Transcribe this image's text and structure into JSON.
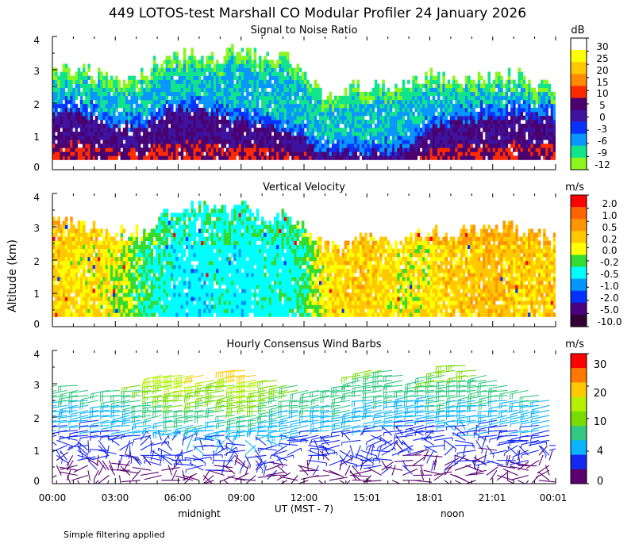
{
  "figure": {
    "title": "449 LOTOS-test Marshall CO Modular Profiler 24 January 2026",
    "ylabel": "Altitude (km)",
    "xlabel": "UT  (MST - 7)",
    "x_ticks": [
      "00:00",
      "03:00",
      "06:00",
      "09:00",
      "12:00",
      "15:01",
      "18:01",
      "21:01",
      "00:01"
    ],
    "local_markers": [
      "midnight",
      "noon"
    ],
    "footnote": "Simple filtering applied"
  },
  "chart_data": [
    {
      "type": "heatmap",
      "title": "Signal to Noise Ratio",
      "x": {
        "unit": "hours UT",
        "range": [
          0,
          24
        ]
      },
      "y": {
        "unit": "km",
        "range": [
          0,
          4
        ],
        "ticks": [
          "0",
          "1",
          "2",
          "3",
          "4"
        ]
      },
      "colorbar": {
        "unit": "dB",
        "labels": [
          "30",
          "25",
          "20",
          "15",
          "10",
          "5",
          "0",
          "-3",
          "-6",
          "-9",
          "-12"
        ],
        "colors": [
          "#ffffff",
          "#ffff00",
          "#ffc800",
          "#ff8c00",
          "#ff2a00",
          "#4b006e",
          "#3c14a0",
          "#0a32ff",
          "#0a96ff",
          "#12e48c",
          "#8cf51e"
        ]
      },
      "top_height_by_hour": [
        2.9,
        3.0,
        2.8,
        2.7,
        2.6,
        3.2,
        3.3,
        3.4,
        3.3,
        3.5,
        3.3,
        3.4,
        2.9,
        2.2,
        2.4,
        2.5,
        2.4,
        2.6,
        2.8,
        2.6,
        2.7,
        2.6,
        2.8,
        2.5,
        2.4
      ],
      "core_height_by_hour": [
        1.7,
        1.7,
        1.5,
        1.3,
        1.2,
        1.5,
        1.8,
        1.7,
        1.6,
        1.4,
        1.3,
        1.2,
        0.9,
        0.4,
        0.5,
        0.5,
        0.5,
        0.6,
        1.2,
        1.4,
        1.5,
        1.5,
        1.6,
        1.5,
        1.5
      ]
    },
    {
      "type": "heatmap",
      "title": "Vertical Velocity",
      "x": {
        "unit": "hours UT",
        "range": [
          0,
          24
        ]
      },
      "y": {
        "unit": "km",
        "range": [
          0,
          4
        ],
        "ticks": [
          "0",
          "1",
          "2",
          "3",
          "4"
        ]
      },
      "colorbar": {
        "unit": "m/s",
        "labels": [
          "2.0",
          "1.0",
          "0.5",
          "0.2",
          "0.0",
          "-0.2",
          "-0.5",
          "-1.0",
          "-2.0",
          "-5.0",
          "-10.0"
        ],
        "colors": [
          "#ff0000",
          "#ff6400",
          "#ff9600",
          "#ffc800",
          "#ffff00",
          "#32dc32",
          "#00ffff",
          "#0096ff",
          "#0032ff",
          "#4b0082",
          "#320032"
        ]
      },
      "top_height_by_hour": [
        3.1,
        3.0,
        2.9,
        2.8,
        2.7,
        3.2,
        3.4,
        3.6,
        3.4,
        3.5,
        3.2,
        3.3,
        2.9,
        2.3,
        2.4,
        2.7,
        2.4,
        2.7,
        2.9,
        2.6,
        2.8,
        2.9,
        3.0,
        2.7,
        2.5
      ],
      "mean_w_by_hour": [
        0.2,
        0.1,
        0.1,
        0.0,
        -0.2,
        -0.4,
        -0.6,
        -0.6,
        -0.5,
        -0.6,
        -0.5,
        -0.5,
        -0.3,
        0.1,
        0.2,
        0.2,
        0.1,
        0.0,
        0.1,
        0.2,
        0.2,
        0.3,
        0.2,
        0.2,
        0.2
      ]
    },
    {
      "type": "wind-barbs",
      "title": "Hourly Consensus Wind Barbs",
      "x": {
        "unit": "hours UT",
        "range": [
          0,
          24
        ]
      },
      "y": {
        "unit": "km",
        "range": [
          0,
          4
        ],
        "ticks": [
          "0",
          "1",
          "2",
          "3",
          "4"
        ]
      },
      "colorbar": {
        "unit": "m/s",
        "labels": [
          "30",
          "20",
          "10",
          "4",
          "0"
        ],
        "colors": [
          "#ff0000",
          "#ff7800",
          "#ffc800",
          "#b4f000",
          "#78dc00",
          "#32c882",
          "#0ab4ff",
          "#1428f0",
          "#5a006e"
        ]
      },
      "max_height_by_hour": [
        3.0,
        3.0,
        2.9,
        2.9,
        2.9,
        3.3,
        3.3,
        3.3,
        3.1,
        3.6,
        3.3,
        3.1,
        2.9,
        2.8,
        2.9,
        3.5,
        3.5,
        3.2,
        3.3,
        3.6,
        3.6,
        3.3,
        2.9,
        2.8,
        2.7
      ],
      "speed_at_top_by_hour": [
        12,
        12,
        11,
        11,
        12,
        18,
        20,
        22,
        16,
        24,
        22,
        16,
        12,
        12,
        13,
        15,
        14,
        12,
        13,
        16,
        15,
        13,
        11,
        11,
        10
      ]
    }
  ]
}
